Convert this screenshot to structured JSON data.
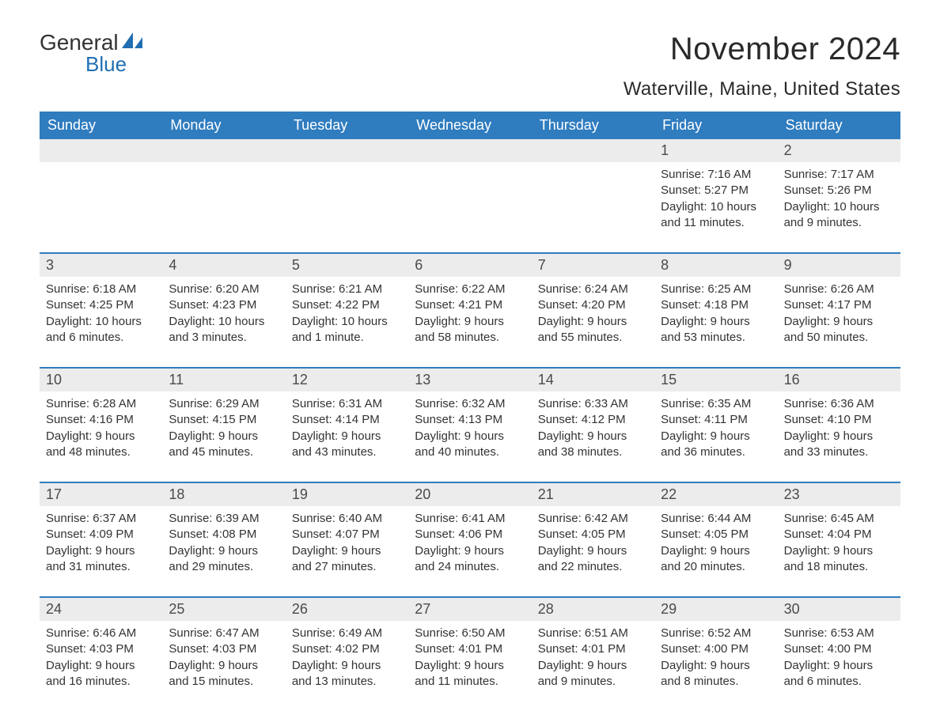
{
  "logo": {
    "text_top": "General",
    "text_bottom": "Blue",
    "sail_color": "#1f6fb2"
  },
  "title": "November 2024",
  "location": "Waterville, Maine, United States",
  "colors": {
    "header_bg": "#2f7cbf",
    "header_text": "#ffffff",
    "week_border": "#2f7cbf",
    "daynum_bg": "#ececec",
    "body_text": "#333333",
    "page_bg": "#ffffff"
  },
  "days_of_week": [
    "Sunday",
    "Monday",
    "Tuesday",
    "Wednesday",
    "Thursday",
    "Friday",
    "Saturday"
  ],
  "weeks": [
    [
      null,
      null,
      null,
      null,
      null,
      {
        "n": "1",
        "sunrise": "7:16 AM",
        "sunset": "5:27 PM",
        "daylight": "10 hours and 11 minutes."
      },
      {
        "n": "2",
        "sunrise": "7:17 AM",
        "sunset": "5:26 PM",
        "daylight": "10 hours and 9 minutes."
      }
    ],
    [
      {
        "n": "3",
        "sunrise": "6:18 AM",
        "sunset": "4:25 PM",
        "daylight": "10 hours and 6 minutes."
      },
      {
        "n": "4",
        "sunrise": "6:20 AM",
        "sunset": "4:23 PM",
        "daylight": "10 hours and 3 minutes."
      },
      {
        "n": "5",
        "sunrise": "6:21 AM",
        "sunset": "4:22 PM",
        "daylight": "10 hours and 1 minute."
      },
      {
        "n": "6",
        "sunrise": "6:22 AM",
        "sunset": "4:21 PM",
        "daylight": "9 hours and 58 minutes."
      },
      {
        "n": "7",
        "sunrise": "6:24 AM",
        "sunset": "4:20 PM",
        "daylight": "9 hours and 55 minutes."
      },
      {
        "n": "8",
        "sunrise": "6:25 AM",
        "sunset": "4:18 PM",
        "daylight": "9 hours and 53 minutes."
      },
      {
        "n": "9",
        "sunrise": "6:26 AM",
        "sunset": "4:17 PM",
        "daylight": "9 hours and 50 minutes."
      }
    ],
    [
      {
        "n": "10",
        "sunrise": "6:28 AM",
        "sunset": "4:16 PM",
        "daylight": "9 hours and 48 minutes."
      },
      {
        "n": "11",
        "sunrise": "6:29 AM",
        "sunset": "4:15 PM",
        "daylight": "9 hours and 45 minutes."
      },
      {
        "n": "12",
        "sunrise": "6:31 AM",
        "sunset": "4:14 PM",
        "daylight": "9 hours and 43 minutes."
      },
      {
        "n": "13",
        "sunrise": "6:32 AM",
        "sunset": "4:13 PM",
        "daylight": "9 hours and 40 minutes."
      },
      {
        "n": "14",
        "sunrise": "6:33 AM",
        "sunset": "4:12 PM",
        "daylight": "9 hours and 38 minutes."
      },
      {
        "n": "15",
        "sunrise": "6:35 AM",
        "sunset": "4:11 PM",
        "daylight": "9 hours and 36 minutes."
      },
      {
        "n": "16",
        "sunrise": "6:36 AM",
        "sunset": "4:10 PM",
        "daylight": "9 hours and 33 minutes."
      }
    ],
    [
      {
        "n": "17",
        "sunrise": "6:37 AM",
        "sunset": "4:09 PM",
        "daylight": "9 hours and 31 minutes."
      },
      {
        "n": "18",
        "sunrise": "6:39 AM",
        "sunset": "4:08 PM",
        "daylight": "9 hours and 29 minutes."
      },
      {
        "n": "19",
        "sunrise": "6:40 AM",
        "sunset": "4:07 PM",
        "daylight": "9 hours and 27 minutes."
      },
      {
        "n": "20",
        "sunrise": "6:41 AM",
        "sunset": "4:06 PM",
        "daylight": "9 hours and 24 minutes."
      },
      {
        "n": "21",
        "sunrise": "6:42 AM",
        "sunset": "4:05 PM",
        "daylight": "9 hours and 22 minutes."
      },
      {
        "n": "22",
        "sunrise": "6:44 AM",
        "sunset": "4:05 PM",
        "daylight": "9 hours and 20 minutes."
      },
      {
        "n": "23",
        "sunrise": "6:45 AM",
        "sunset": "4:04 PM",
        "daylight": "9 hours and 18 minutes."
      }
    ],
    [
      {
        "n": "24",
        "sunrise": "6:46 AM",
        "sunset": "4:03 PM",
        "daylight": "9 hours and 16 minutes."
      },
      {
        "n": "25",
        "sunrise": "6:47 AM",
        "sunset": "4:03 PM",
        "daylight": "9 hours and 15 minutes."
      },
      {
        "n": "26",
        "sunrise": "6:49 AM",
        "sunset": "4:02 PM",
        "daylight": "9 hours and 13 minutes."
      },
      {
        "n": "27",
        "sunrise": "6:50 AM",
        "sunset": "4:01 PM",
        "daylight": "9 hours and 11 minutes."
      },
      {
        "n": "28",
        "sunrise": "6:51 AM",
        "sunset": "4:01 PM",
        "daylight": "9 hours and 9 minutes."
      },
      {
        "n": "29",
        "sunrise": "6:52 AM",
        "sunset": "4:00 PM",
        "daylight": "9 hours and 8 minutes."
      },
      {
        "n": "30",
        "sunrise": "6:53 AM",
        "sunset": "4:00 PM",
        "daylight": "9 hours and 6 minutes."
      }
    ]
  ],
  "labels": {
    "sunrise": "Sunrise: ",
    "sunset": "Sunset: ",
    "daylight": "Daylight: "
  }
}
